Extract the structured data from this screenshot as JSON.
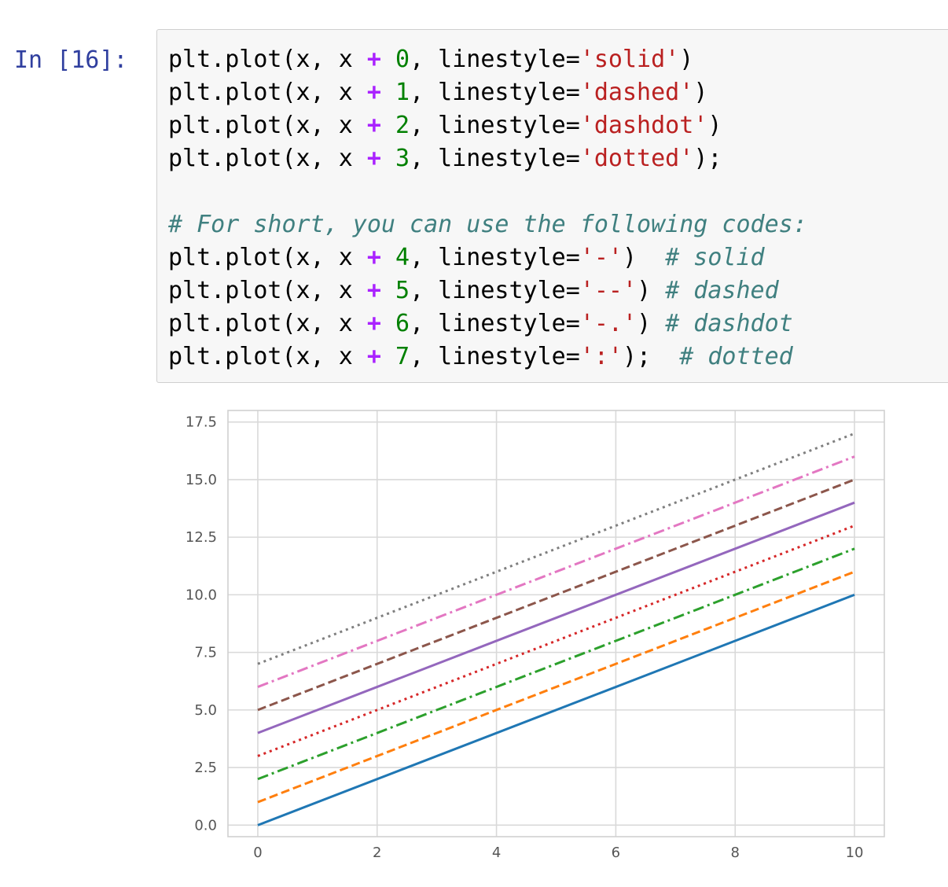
{
  "cell": {
    "prompt": "In [16]:",
    "code_lines": [
      [
        {
          "t": "plt.plot(x, x "
        },
        {
          "t": "+",
          "c": "op"
        },
        {
          "t": " "
        },
        {
          "t": "0",
          "c": "num"
        },
        {
          "t": ", linestyle="
        },
        {
          "t": "'solid'",
          "c": "str"
        },
        {
          "t": ")"
        }
      ],
      [
        {
          "t": "plt.plot(x, x "
        },
        {
          "t": "+",
          "c": "op"
        },
        {
          "t": " "
        },
        {
          "t": "1",
          "c": "num"
        },
        {
          "t": ", linestyle="
        },
        {
          "t": "'dashed'",
          "c": "str"
        },
        {
          "t": ")"
        }
      ],
      [
        {
          "t": "plt.plot(x, x "
        },
        {
          "t": "+",
          "c": "op"
        },
        {
          "t": " "
        },
        {
          "t": "2",
          "c": "num"
        },
        {
          "t": ", linestyle="
        },
        {
          "t": "'dashdot'",
          "c": "str"
        },
        {
          "t": ")"
        }
      ],
      [
        {
          "t": "plt.plot(x, x "
        },
        {
          "t": "+",
          "c": "op"
        },
        {
          "t": " "
        },
        {
          "t": "3",
          "c": "num"
        },
        {
          "t": ", linestyle="
        },
        {
          "t": "'dotted'",
          "c": "str"
        },
        {
          "t": ");"
        }
      ],
      [],
      [
        {
          "t": "# For short, you can use the following codes:",
          "c": "com"
        }
      ],
      [
        {
          "t": "plt.plot(x, x "
        },
        {
          "t": "+",
          "c": "op"
        },
        {
          "t": " "
        },
        {
          "t": "4",
          "c": "num"
        },
        {
          "t": ", linestyle="
        },
        {
          "t": "'-'",
          "c": "str"
        },
        {
          "t": ")  "
        },
        {
          "t": "# solid",
          "c": "com"
        }
      ],
      [
        {
          "t": "plt.plot(x, x "
        },
        {
          "t": "+",
          "c": "op"
        },
        {
          "t": " "
        },
        {
          "t": "5",
          "c": "num"
        },
        {
          "t": ", linestyle="
        },
        {
          "t": "'--'",
          "c": "str"
        },
        {
          "t": ") "
        },
        {
          "t": "# dashed",
          "c": "com"
        }
      ],
      [
        {
          "t": "plt.plot(x, x "
        },
        {
          "t": "+",
          "c": "op"
        },
        {
          "t": " "
        },
        {
          "t": "6",
          "c": "num"
        },
        {
          "t": ", linestyle="
        },
        {
          "t": "'-.'",
          "c": "str"
        },
        {
          "t": ") "
        },
        {
          "t": "# dashdot",
          "c": "com"
        }
      ],
      [
        {
          "t": "plt.plot(x, x "
        },
        {
          "t": "+",
          "c": "op"
        },
        {
          "t": " "
        },
        {
          "t": "7",
          "c": "num"
        },
        {
          "t": ", linestyle="
        },
        {
          "t": "':'",
          "c": "str"
        },
        {
          "t": ");  "
        },
        {
          "t": "# dotted",
          "c": "com"
        }
      ]
    ]
  },
  "chart_data": {
    "type": "line",
    "title": "",
    "xlabel": "",
    "ylabel": "",
    "xlim": [
      -0.5,
      10.5
    ],
    "ylim": [
      -0.5,
      18.0
    ],
    "grid": true,
    "x_ticks": [
      0,
      2,
      4,
      6,
      8,
      10
    ],
    "x_tick_labels": [
      "0",
      "2",
      "4",
      "6",
      "8",
      "10"
    ],
    "y_ticks": [
      0.0,
      2.5,
      5.0,
      7.5,
      10.0,
      12.5,
      15.0,
      17.5
    ],
    "y_tick_labels": [
      "0.0",
      "2.5",
      "5.0",
      "7.5",
      "10.0",
      "12.5",
      "15.0",
      "17.5"
    ],
    "series": [
      {
        "x": [
          0,
          10
        ],
        "y": [
          0,
          10
        ],
        "color": "#1f77b4",
        "linestyle": "solid"
      },
      {
        "x": [
          0,
          10
        ],
        "y": [
          1,
          11
        ],
        "color": "#ff7f0e",
        "linestyle": "dashed"
      },
      {
        "x": [
          0,
          10
        ],
        "y": [
          2,
          12
        ],
        "color": "#2ca02c",
        "linestyle": "dashdot"
      },
      {
        "x": [
          0,
          10
        ],
        "y": [
          3,
          13
        ],
        "color": "#d62728",
        "linestyle": "dotted"
      },
      {
        "x": [
          0,
          10
        ],
        "y": [
          4,
          14
        ],
        "color": "#9467bd",
        "linestyle": "solid"
      },
      {
        "x": [
          0,
          10
        ],
        "y": [
          5,
          15
        ],
        "color": "#8c564b",
        "linestyle": "dashed"
      },
      {
        "x": [
          0,
          10
        ],
        "y": [
          6,
          16
        ],
        "color": "#e377c2",
        "linestyle": "dashdot"
      },
      {
        "x": [
          0,
          10
        ],
        "y": [
          7,
          17
        ],
        "color": "#7f7f7f",
        "linestyle": "dotted"
      }
    ]
  }
}
